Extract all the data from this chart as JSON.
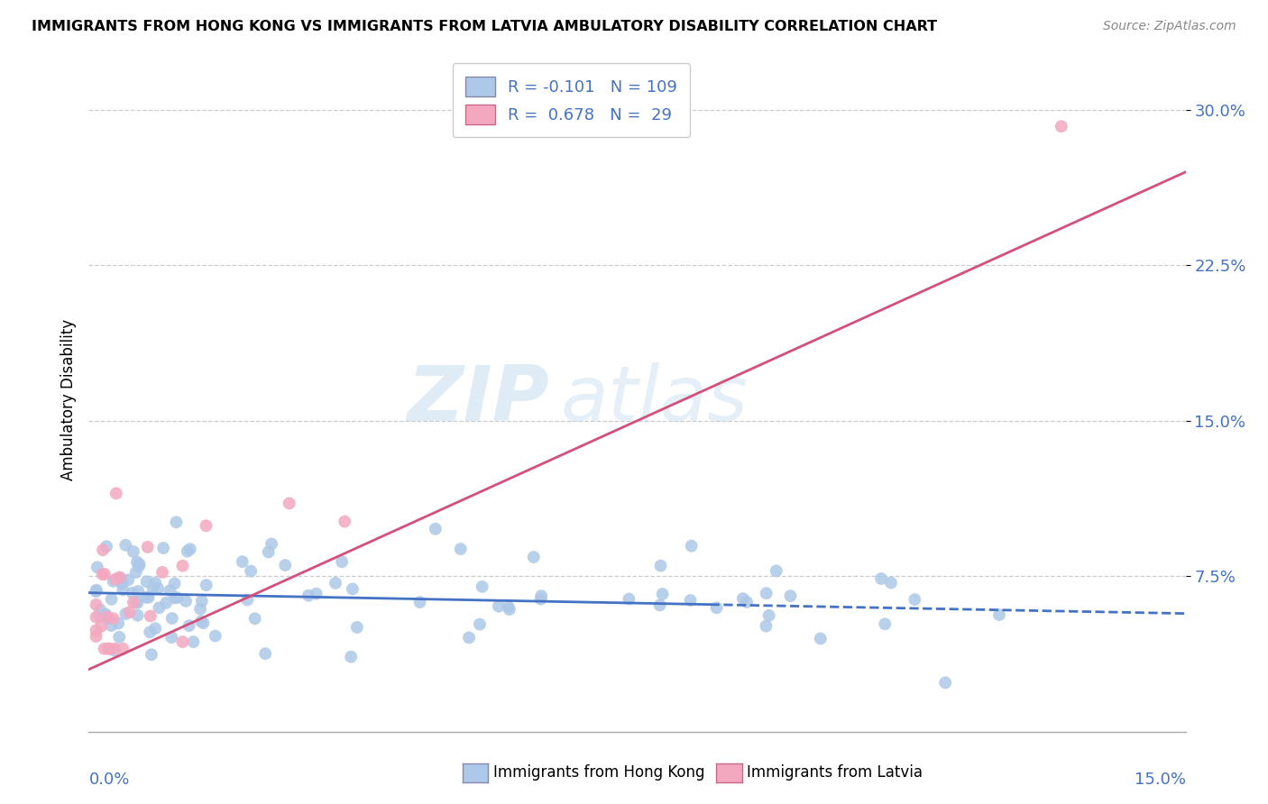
{
  "title": "IMMIGRANTS FROM HONG KONG VS IMMIGRANTS FROM LATVIA AMBULATORY DISABILITY CORRELATION CHART",
  "source": "Source: ZipAtlas.com",
  "ylabel": "Ambulatory Disability",
  "xlim": [
    0.0,
    0.15
  ],
  "ylim": [
    0.0,
    0.32
  ],
  "yticks": [
    0.075,
    0.15,
    0.225,
    0.3
  ],
  "ytick_labels": [
    "7.5%",
    "15.0%",
    "22.5%",
    "30.0%"
  ],
  "hk_color": "#adc8e8",
  "latvia_color": "#f4a8c0",
  "hk_line_color": "#4472c4",
  "latvia_line_color": "#d4507a",
  "hk_R": -0.101,
  "hk_N": 109,
  "latvia_R": 0.678,
  "latvia_N": 29,
  "watermark_zip": "ZIP",
  "watermark_atlas": "atlas",
  "background_color": "#ffffff",
  "grid_color": "#cccccc",
  "legend_label_hk": "Immigrants from Hong Kong",
  "legend_label_latvia": "Immigrants from Latvia"
}
